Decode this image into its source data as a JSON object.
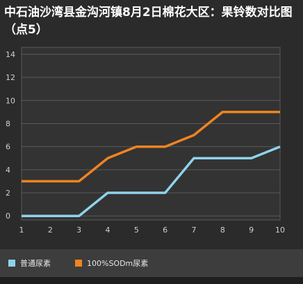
{
  "chart_data": {
    "type": "line",
    "title": "中石油沙湾县金沟河镇8月2日棉花大区：果铃数对比图（点5）",
    "x": [
      1,
      2,
      3,
      4,
      5,
      6,
      7,
      8,
      9,
      10
    ],
    "y_ticks": [
      0,
      2,
      4,
      6,
      8,
      10,
      12,
      14
    ],
    "ylim": [
      0,
      14
    ],
    "xlim": [
      1,
      10
    ],
    "grid": true,
    "legend_position": "bottom",
    "series": [
      {
        "name": "普通尿素",
        "color": "#8ed3ec",
        "values": [
          0,
          0,
          0,
          2,
          2,
          2,
          5,
          5,
          5,
          6
        ]
      },
      {
        "name": "100%SODm尿素",
        "color": "#f0841f",
        "values": [
          3,
          3,
          3,
          5,
          6,
          6,
          7,
          9,
          9,
          9
        ]
      }
    ]
  },
  "colors": {
    "background": "#2b2b2b",
    "plot_background": "#333333",
    "grid": "#5a5a5a",
    "axis_text": "#d0d0d0"
  }
}
